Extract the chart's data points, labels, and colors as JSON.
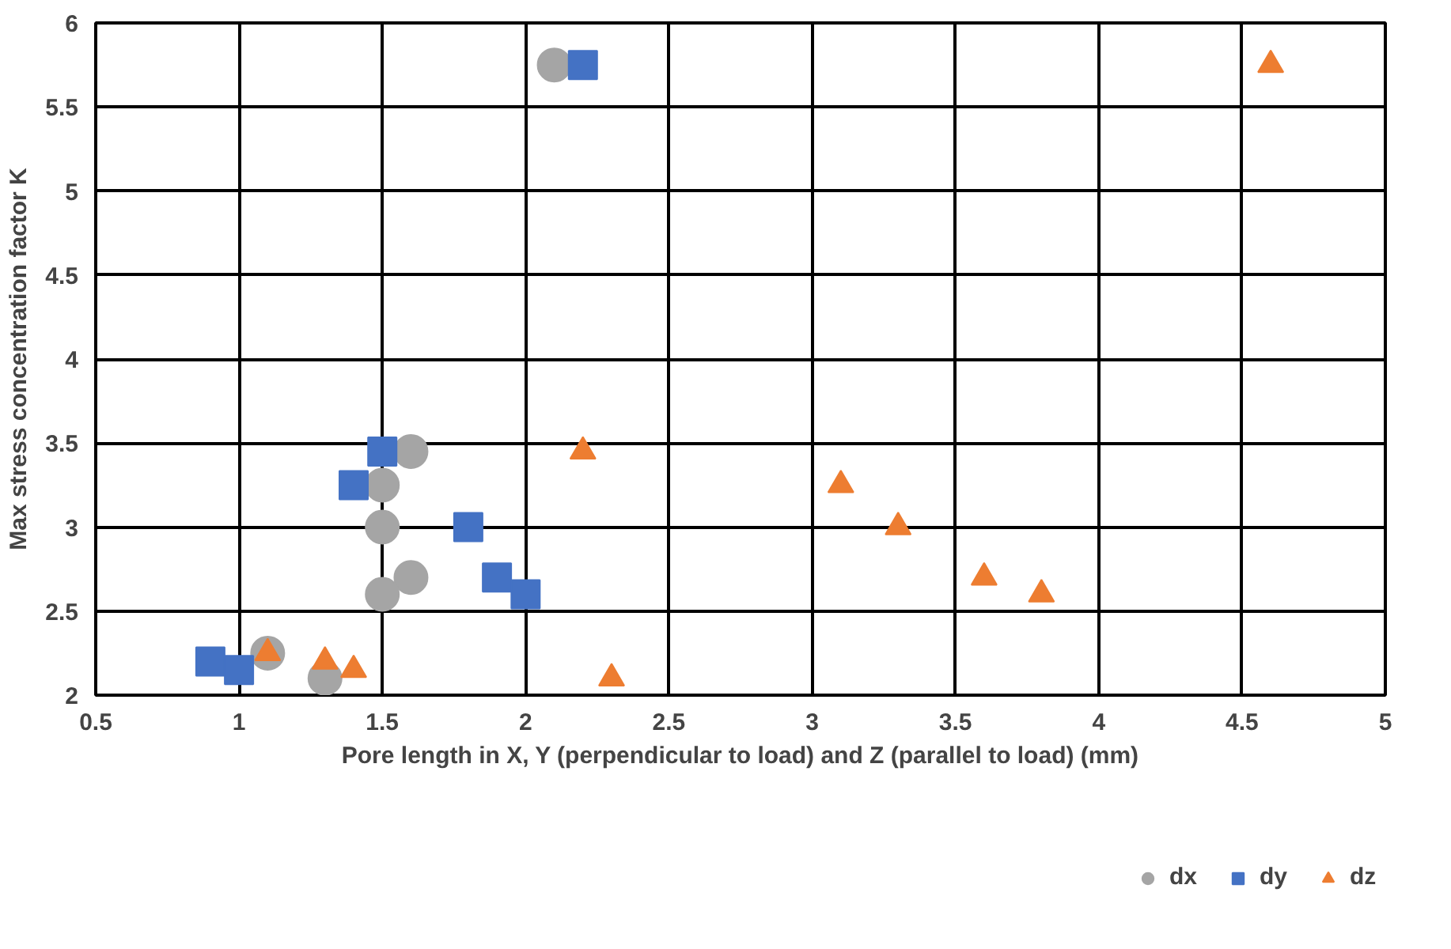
{
  "chart_data": {
    "type": "scatter",
    "xlabel": "Pore length in X, Y (perpendicular to load) and Z (parallel to load) (mm)",
    "ylabel": "Max stress concentration factor K",
    "xlim": [
      0.5,
      5
    ],
    "xticks": [
      0.5,
      1,
      1.5,
      2,
      2.5,
      3,
      3.5,
      4,
      4.5,
      5
    ],
    "ylim": [
      2,
      6
    ],
    "yticks": [
      2,
      2.5,
      3,
      3.5,
      4,
      4.5,
      5,
      5.5,
      6
    ],
    "grid": true,
    "legend": "bottom",
    "series": [
      {
        "name": "dx",
        "color": "#a5a5a5",
        "marker": "circle",
        "x": [
          2.1,
          1.6,
          1.5,
          1.5,
          1.6,
          1.5,
          1.1,
          1.3
        ],
        "values": [
          5.75,
          3.45,
          3.25,
          3.0,
          2.7,
          2.6,
          2.25,
          2.1
        ]
      },
      {
        "name": "dy",
        "color": "#4472c4",
        "marker": "square",
        "x": [
          2.2,
          1.5,
          1.4,
          1.8,
          1.9,
          2.0,
          0.9,
          1.0
        ],
        "values": [
          5.75,
          3.45,
          3.25,
          3.0,
          2.7,
          2.6,
          2.2,
          2.15
        ]
      },
      {
        "name": "dz",
        "color": "#ed7d31",
        "marker": "triangle",
        "x": [
          4.6,
          2.2,
          3.1,
          3.3,
          3.6,
          3.8,
          1.1,
          1.3,
          1.4,
          2.3
        ],
        "values": [
          5.75,
          3.45,
          3.25,
          3.0,
          2.7,
          2.6,
          2.25,
          2.2,
          2.15,
          2.1
        ]
      }
    ]
  }
}
